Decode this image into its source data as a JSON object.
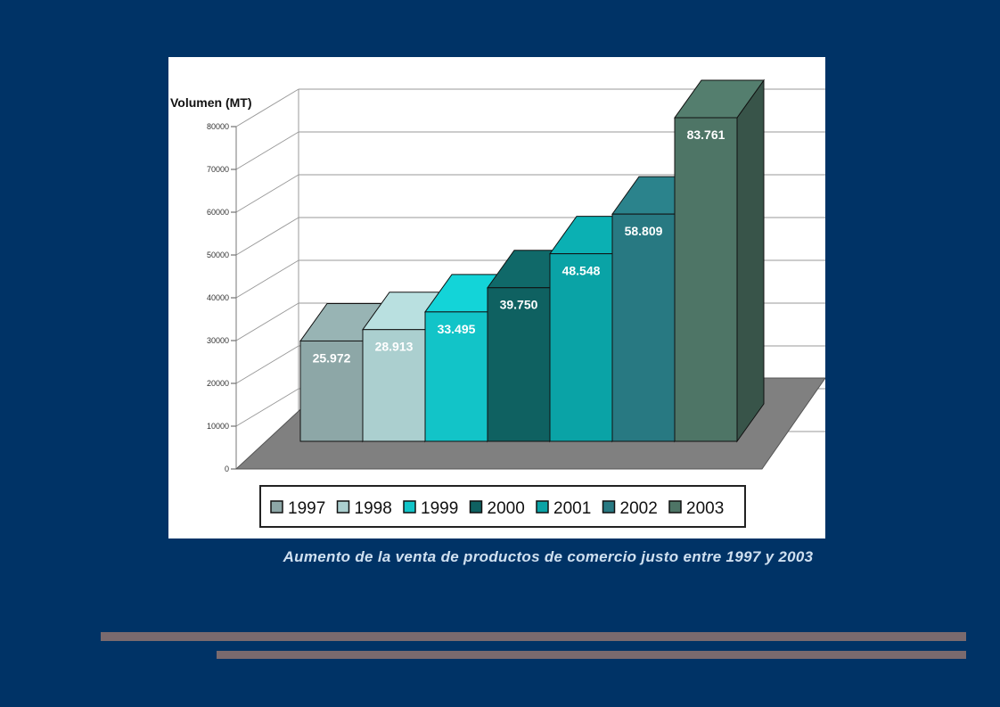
{
  "caption": "Aumento de la venta de productos de comercio justo entre 1997 y 2003",
  "chart_data": {
    "type": "bar",
    "title": "",
    "ylabel": "Volumen (MT)",
    "xlabel": "",
    "categories": [
      "1997",
      "1998",
      "1999",
      "2000",
      "2001",
      "2002",
      "2003"
    ],
    "values": [
      25972,
      28913,
      33495,
      39750,
      48548,
      58809,
      83761
    ],
    "data_labels": [
      "25.972",
      "28.913",
      "33.495",
      "39.750",
      "48.548",
      "58.809",
      "83.761"
    ],
    "yticks": [
      "0",
      "10000",
      "20000",
      "30000",
      "40000",
      "50000",
      "60000",
      "70000",
      "80000"
    ],
    "ylim": [
      0,
      80000
    ],
    "grid": true,
    "legend_position": "bottom",
    "colors": [
      "#8da7a7",
      "#abcfcf",
      "#12c4c8",
      "#0f6161",
      "#0aa3a6",
      "#287982",
      "#4e7566"
    ]
  }
}
